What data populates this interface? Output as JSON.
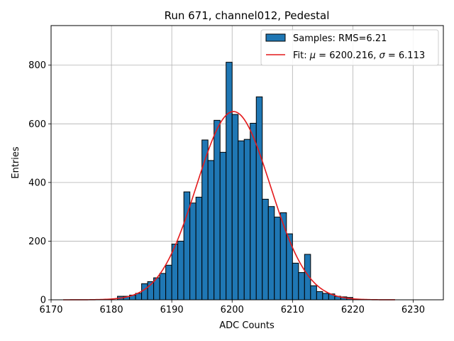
{
  "chart_data": {
    "type": "bar",
    "title": "Run 671, channel012, Pedestal",
    "xlabel": "ADC Counts",
    "ylabel": "Entries",
    "xlim": [
      6170,
      6235
    ],
    "ylim": [
      0,
      935
    ],
    "xticks": [
      6170,
      6180,
      6190,
      6200,
      6210,
      6220,
      6230
    ],
    "yticks": [
      0,
      200,
      400,
      600,
      800
    ],
    "grid": true,
    "legend_position": "top-right",
    "colors": {
      "bars": "#1f77b4",
      "fit": "#e41a1c"
    },
    "bin_width": 1,
    "histogram": {
      "name": "Samples: RMS=6.21",
      "bin_starts": [
        6181,
        6182,
        6183,
        6184,
        6185,
        6186,
        6187,
        6188,
        6189,
        6190,
        6191,
        6192,
        6193,
        6194,
        6195,
        6196,
        6197,
        6198,
        6199,
        6200,
        6201,
        6202,
        6203,
        6204,
        6205,
        6206,
        6207,
        6208,
        6209,
        6210,
        6211,
        6212,
        6213,
        6214,
        6215,
        6216,
        6217,
        6218,
        6219,
        6220
      ],
      "counts": [
        12,
        12,
        16,
        22,
        55,
        62,
        75,
        90,
        118,
        190,
        200,
        368,
        330,
        350,
        545,
        475,
        612,
        503,
        810,
        632,
        542,
        547,
        602,
        692,
        343,
        318,
        282,
        297,
        225,
        125,
        93,
        155,
        48,
        28,
        22,
        20,
        12,
        10,
        8,
        0
      ]
    },
    "fit": {
      "name_prefix": "Fit: ",
      "name_mu_part": " = 6200.216, ",
      "name_sigma_part": " = 6.113",
      "mu": 6200.216,
      "sigma": 6.113,
      "amplitude": 642,
      "x_range": [
        6172,
        6227
      ]
    }
  }
}
